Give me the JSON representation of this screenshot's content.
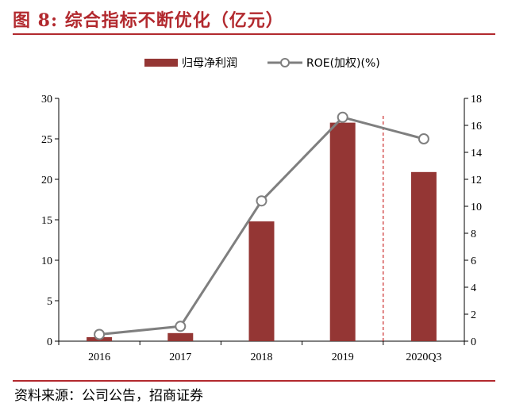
{
  "header": {
    "title": "图 8:  综合指标不断优化（亿元）"
  },
  "footer": {
    "source": "资料来源：公司公告，招商证券"
  },
  "chart_data": {
    "type": "bar",
    "categories": [
      "2016",
      "2017",
      "2018",
      "2019",
      "2020Q3"
    ],
    "series": [
      {
        "name": "归母净利润",
        "type": "bar",
        "axis": "left",
        "color": "#943634",
        "values": [
          0.5,
          1.0,
          14.8,
          27.0,
          20.9
        ]
      },
      {
        "name": "ROE(加权)(%)",
        "type": "line",
        "axis": "right",
        "color": "#7f7f7f",
        "values": [
          0.5,
          1.1,
          10.4,
          16.6,
          15.0
        ]
      }
    ],
    "y_left": {
      "range": [
        0,
        30
      ],
      "ticks": [
        "0",
        "5",
        "10",
        "15",
        "20",
        "25",
        "30"
      ]
    },
    "y_right": {
      "range": [
        0,
        18
      ],
      "ticks": [
        "0",
        "2",
        "4",
        "6",
        "8",
        "10",
        "12",
        "14",
        "16",
        "18"
      ]
    },
    "divider": {
      "between": [
        "2019",
        "2020Q3"
      ],
      "style": "dashed",
      "color": "#c00000"
    },
    "legend": {
      "placement": "top-center"
    },
    "grid": false
  }
}
